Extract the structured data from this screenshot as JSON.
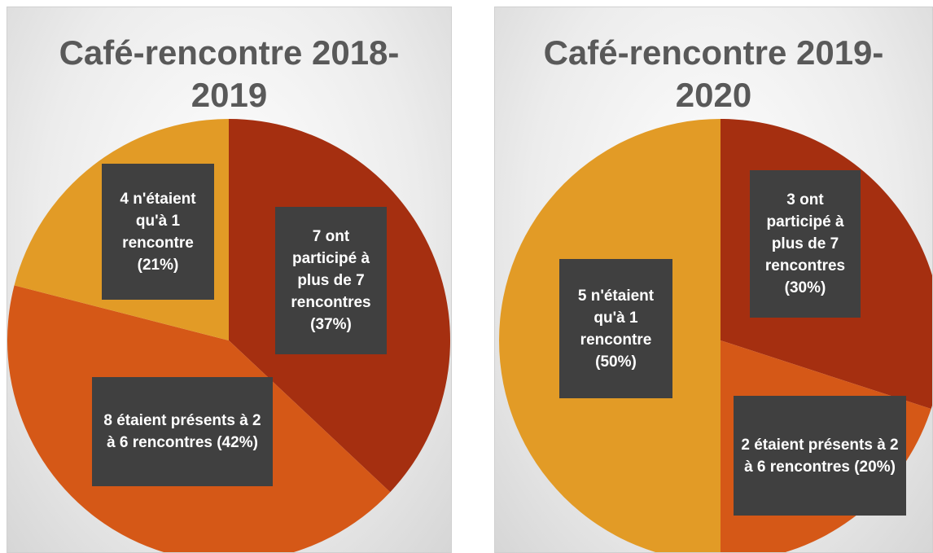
{
  "chart_data": [
    {
      "type": "pie",
      "title": "Café-rencontre 2018-2019",
      "categories": [
        "ont participé à plus de 7 rencontres",
        "étaient présents à 2 à 6 rencontres",
        "n'étaient qu'à 1 rencontre"
      ],
      "values": [
        37,
        42,
        21
      ],
      "value_labels": [
        "7 ont participé à plus de 7 rencontres (37%)",
        "8 étaient présents à 2 à 6 rencontres (42%)",
        "4 n'étaient qu'à 1 rencontre (21%)"
      ],
      "colors": [
        "#a52f10",
        "#d55817",
        "#e29b26"
      ]
    },
    {
      "type": "pie",
      "title": "Café-rencontre 2019-2020",
      "categories": [
        "ont participé à plus de 7 rencontres",
        "étaient présents à 2 à 6 rencontres",
        "n'étaient qu'à 1 rencontre"
      ],
      "values": [
        30,
        20,
        50
      ],
      "value_labels": [
        "3 ont participé à plus de 7 rencontres (30%)",
        "2 étaient présents à 2 à 6 rencontres (20%)",
        "5 n'étaient qu'à 1 rencontre (50%)"
      ],
      "colors": [
        "#a52f10",
        "#d55817",
        "#e29b26"
      ]
    }
  ]
}
